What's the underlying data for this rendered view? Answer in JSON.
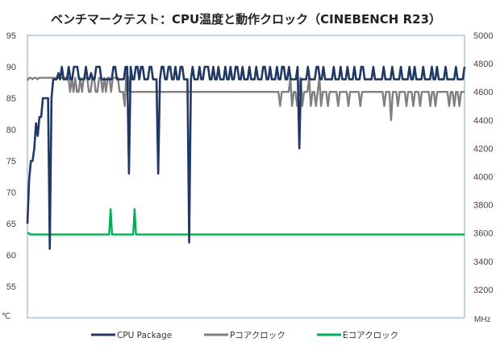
{
  "chart_data": {
    "type": "line",
    "title": "ベンチマークテスト：CPU温度と動作クロック（CINEBENCH R23）",
    "left_axis": {
      "unit": "℃",
      "range": [
        50,
        95
      ],
      "ticks": [
        "95",
        "90",
        "85",
        "80",
        "75",
        "70",
        "65",
        "60",
        "55"
      ]
    },
    "right_axis": {
      "unit": "MHz",
      "range": [
        3000,
        5000
      ],
      "ticks": [
        "5000",
        "4800",
        "4600",
        "4400",
        "4200",
        "4000",
        "3800",
        "3600",
        "3400",
        "3200"
      ]
    },
    "grid": false,
    "legend_position": "bottom",
    "series": [
      {
        "name": "CPU Package",
        "axis": "left",
        "color": "#1f3864",
        "values": [
          65,
          72,
          75,
          75,
          77,
          81,
          79,
          82,
          82,
          85,
          85,
          85,
          85,
          61,
          85,
          88,
          88,
          88,
          89,
          88,
          90,
          88,
          88,
          88,
          90,
          88,
          88,
          90,
          90,
          90,
          88,
          88,
          88,
          88,
          90,
          88,
          88,
          89,
          88,
          88,
          90,
          90,
          90,
          88,
          88,
          88,
          88,
          88,
          88,
          88,
          90,
          90,
          88,
          88,
          88,
          88,
          88,
          90,
          90,
          73,
          90,
          88,
          88,
          90,
          90,
          88,
          90,
          90,
          88,
          88,
          88,
          90,
          90,
          88,
          88,
          88,
          73,
          88,
          90,
          90,
          88,
          88,
          90,
          90,
          88,
          88,
          90,
          88,
          88,
          90,
          90,
          88,
          88,
          88,
          62,
          88,
          90,
          88,
          88,
          88,
          90,
          88,
          88,
          90,
          90,
          90,
          88,
          88,
          90,
          88,
          88,
          90,
          88,
          88,
          88,
          90,
          88,
          88,
          90,
          88,
          88,
          90,
          90,
          88,
          88,
          90,
          88,
          88,
          88,
          90,
          88,
          88,
          88,
          90,
          88,
          88,
          88,
          90,
          90,
          88,
          88,
          90,
          88,
          88,
          88,
          90,
          88,
          88,
          90,
          90,
          88,
          88,
          90,
          88,
          88,
          88,
          88,
          90,
          77,
          88,
          88,
          88,
          88,
          90,
          88,
          88,
          88,
          88,
          90,
          90,
          88,
          88,
          90,
          88,
          88,
          88,
          88,
          88,
          90,
          88,
          88,
          88,
          90,
          88,
          88,
          88,
          90,
          88,
          88,
          88,
          90,
          88,
          88,
          88,
          90,
          90,
          88,
          88,
          88,
          88,
          88,
          90,
          88,
          88,
          88,
          88,
          88,
          90,
          88,
          88,
          88,
          88,
          90,
          88,
          88,
          88,
          88,
          90,
          88,
          88,
          88,
          88,
          90,
          88,
          88,
          90,
          88,
          88,
          88,
          88,
          90,
          88,
          88,
          88,
          88,
          90,
          88,
          88,
          90,
          88,
          88,
          88,
          88,
          90,
          88,
          88,
          88,
          88,
          88,
          90,
          88,
          88,
          88,
          88,
          90
        ]
      },
      {
        "name": "Pコアクロック",
        "axis": "right",
        "color": "#808080",
        "values": [
          4680,
          4700,
          4700,
          4690,
          4700,
          4700,
          4690,
          4700,
          4700,
          4700,
          4700,
          4700,
          4700,
          4700,
          4700,
          4700,
          4700,
          4700,
          4700,
          4700,
          4700,
          4700,
          4700,
          4700,
          4700,
          4600,
          4700,
          4600,
          4700,
          4600,
          4600,
          4700,
          4600,
          4700,
          4700,
          4700,
          4600,
          4600,
          4700,
          4700,
          4600,
          4600,
          4700,
          4700,
          4600,
          4700,
          4600,
          4700,
          4700,
          4600,
          4700,
          4700,
          4700,
          4700,
          4600,
          4600,
          4600,
          4500,
          4750,
          4700,
          4600,
          4600,
          4600,
          4600,
          4600,
          4600,
          4600,
          4600,
          4600,
          4600,
          4600,
          4600,
          4600,
          4600,
          4600,
          4600,
          4600,
          4600,
          4600,
          4600,
          4600,
          4600,
          4600,
          4600,
          4600,
          4600,
          4600,
          4600,
          4600,
          4600,
          4600,
          4600,
          4600,
          4600,
          4600,
          4600,
          4600,
          4600,
          4600,
          4600,
          4600,
          4600,
          4600,
          4600,
          4600,
          4600,
          4600,
          4600,
          4600,
          4600,
          4600,
          4600,
          4600,
          4600,
          4600,
          4600,
          4600,
          4600,
          4600,
          4600,
          4600,
          4600,
          4600,
          4600,
          4600,
          4600,
          4600,
          4600,
          4600,
          4600,
          4600,
          4600,
          4600,
          4600,
          4600,
          4600,
          4600,
          4600,
          4600,
          4600,
          4600,
          4600,
          4600,
          4600,
          4600,
          4600,
          4600,
          4600,
          4500,
          4600,
          4600,
          4600,
          4600,
          4600,
          4700,
          4500,
          4600,
          4600,
          4500,
          4600,
          4700,
          4500,
          4600,
          4600,
          4600,
          4700,
          4500,
          4600,
          4600,
          4500,
          4600,
          4700,
          4500,
          4600,
          4600,
          4600,
          4500,
          4600,
          4600,
          4600,
          4600,
          4600,
          4500,
          4600,
          4600,
          4600,
          4600,
          4600,
          4500,
          4600,
          4600,
          4600,
          4600,
          4600,
          4600,
          4500,
          4600,
          4600,
          4600,
          4600,
          4600,
          4600,
          4600,
          4600,
          4600,
          4600,
          4600,
          4600,
          4600,
          4500,
          4600,
          4600,
          4600,
          4400,
          4600,
          4600,
          4600,
          4500,
          4600,
          4600,
          4600,
          4600,
          4500,
          4600,
          4600,
          4600,
          4500,
          4600,
          4600,
          4600,
          4500,
          4600,
          4600,
          4600,
          4600,
          4600,
          4500,
          4600,
          4600,
          4500,
          4600,
          4600,
          4600,
          4600,
          4600,
          4600,
          4600,
          4500,
          4600,
          4600,
          4500,
          4600,
          4600,
          4500,
          4600,
          4600,
          4600
        ]
      },
      {
        "name": "Eコアクロック",
        "axis": "right",
        "color": "#00b050",
        "values": [
          3600,
          3600,
          3590,
          3590,
          3590,
          3590,
          3590,
          3590,
          3590,
          3590,
          3590,
          3590,
          3590,
          3590,
          3590,
          3590,
          3590,
          3590,
          3590,
          3590,
          3590,
          3590,
          3590,
          3590,
          3590,
          3590,
          3590,
          3590,
          3590,
          3590,
          3590,
          3590,
          3590,
          3590,
          3590,
          3590,
          3590,
          3590,
          3590,
          3590,
          3590,
          3590,
          3590,
          3590,
          3590,
          3590,
          3590,
          3590,
          3590,
          3590,
          3590,
          3590,
          3590,
          3590,
          3590,
          3590,
          3590,
          3590,
          3590,
          3770,
          3590,
          3590,
          3590,
          3590,
          3590,
          3590,
          3590,
          3590,
          3590,
          3590,
          3590,
          3590,
          3590,
          3590,
          3590,
          3590,
          3770,
          3590,
          3590,
          3590,
          3590,
          3590,
          3590,
          3590,
          3590,
          3590,
          3590,
          3590,
          3590,
          3590,
          3590,
          3590,
          3590,
          3590,
          3590,
          3590,
          3590,
          3590,
          3590,
          3590,
          3590,
          3590,
          3590,
          3590,
          3590,
          3590,
          3590,
          3590,
          3590,
          3590,
          3590,
          3590,
          3590,
          3590,
          3590,
          3590,
          3590,
          3590,
          3590,
          3590,
          3590,
          3590,
          3590,
          3590,
          3590,
          3590,
          3590,
          3590,
          3590,
          3590,
          3590,
          3590,
          3590,
          3590,
          3590,
          3590,
          3590,
          3590,
          3590,
          3590,
          3590,
          3590,
          3590,
          3590,
          3590,
          3590,
          3590,
          3590,
          3590,
          3590,
          3590,
          3590,
          3590,
          3590,
          3590,
          3590,
          3590,
          3590,
          3590,
          3590,
          3590,
          3590,
          3590,
          3590,
          3590,
          3590,
          3590,
          3590,
          3590,
          3590,
          3590,
          3590,
          3590,
          3590,
          3590,
          3590,
          3590,
          3590,
          3590,
          3590,
          3590,
          3590,
          3590,
          3590,
          3590,
          3590,
          3590,
          3590,
          3590,
          3590,
          3590,
          3590,
          3590,
          3590,
          3590,
          3590,
          3590,
          3590,
          3590,
          3590,
          3590,
          3590,
          3590,
          3590,
          3590,
          3590,
          3590,
          3590,
          3590,
          3590,
          3590,
          3590,
          3590,
          3590,
          3590,
          3590,
          3590,
          3590,
          3590,
          3590,
          3590,
          3590,
          3590,
          3590,
          3590,
          3590,
          3590,
          3590,
          3590,
          3590,
          3590,
          3590,
          3590,
          3590,
          3590,
          3590,
          3590,
          3590,
          3590,
          3590,
          3590,
          3590,
          3590,
          3590,
          3590,
          3590,
          3590,
          3590,
          3590,
          3590,
          3590,
          3590,
          3590,
          3590,
          3590,
          3590,
          3590,
          3590,
          3590,
          3590,
          3590,
          3590,
          3590,
          3590,
          3590,
          3590,
          3590,
          3590,
          3590,
          3590,
          3590,
          3590,
          3590,
          3590,
          3590,
          3590,
          3590,
          3590,
          3590,
          3590,
          3590,
          3590,
          3590,
          3590,
          3590,
          3590,
          3590,
          3590,
          3590,
          3590,
          3590,
          3590,
          3590,
          3590,
          3590,
          3590,
          3590,
          3590,
          3590,
          3590,
          3590,
          3590,
          3590,
          3590,
          3590,
          3590,
          3590,
          3590,
          3590,
          3590,
          3590
        ]
      }
    ]
  }
}
